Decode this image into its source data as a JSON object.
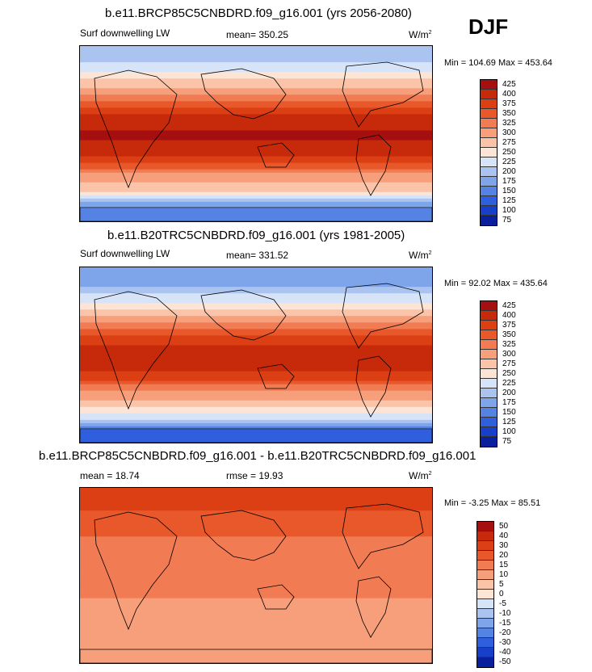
{
  "season": "DJF",
  "chart_data": [
    {
      "type": "heatmap",
      "title": "b.e11.BRCP85C5CNBDRD.f09_g16.001 (yrs 2056-2080)",
      "variable": "Surf downwelling LW",
      "mean_label": "mean= 350.25",
      "units": "W/m",
      "units_exp": "2",
      "minmax": "Min = 104.69 Max = 453.64",
      "min": 104.69,
      "max": 453.64,
      "mean": 350.25,
      "levels": [
        "425",
        "400",
        "375",
        "350",
        "325",
        "300",
        "275",
        "250",
        "225",
        "200",
        "175",
        "150",
        "125",
        "100",
        "75"
      ],
      "colors": [
        "#a50f0f",
        "#c72a0b",
        "#dc3f14",
        "#e9582a",
        "#f17b52",
        "#f79e7a",
        "#fbc4a8",
        "#fde4d5",
        "#d7e3f6",
        "#aac4ef",
        "#7ea4e9",
        "#5583e4",
        "#2f5fdc",
        "#173fc8",
        "#0a1f9c"
      ],
      "zonal_profile_wm2": [
        {
          "lat": 80,
          "v": 200
        },
        {
          "lat": 60,
          "v": 260
        },
        {
          "lat": 40,
          "v": 320
        },
        {
          "lat": 20,
          "v": 400
        },
        {
          "lat": 0,
          "v": 430
        },
        {
          "lat": -20,
          "v": 410
        },
        {
          "lat": -40,
          "v": 330
        },
        {
          "lat": -60,
          "v": 270
        },
        {
          "lat": -80,
          "v": 150
        }
      ]
    },
    {
      "type": "heatmap",
      "title": "b.e11.B20TRC5CNBDRD.f09_g16.001 (yrs 1981-2005)",
      "variable": "Surf downwelling LW",
      "mean_label": "mean= 331.52",
      "units": "W/m",
      "units_exp": "2",
      "minmax": "Min =  92.02 Max = 435.64",
      "min": 92.02,
      "max": 435.64,
      "mean": 331.52,
      "levels": [
        "425",
        "400",
        "375",
        "350",
        "325",
        "300",
        "275",
        "250",
        "225",
        "200",
        "175",
        "150",
        "125",
        "100",
        "75"
      ],
      "colors": [
        "#a50f0f",
        "#c72a0b",
        "#dc3f14",
        "#e9582a",
        "#f17b52",
        "#f79e7a",
        "#fbc4a8",
        "#fde4d5",
        "#d7e3f6",
        "#aac4ef",
        "#7ea4e9",
        "#5583e4",
        "#2f5fdc",
        "#173fc8",
        "#0a1f9c"
      ],
      "zonal_profile_wm2": [
        {
          "lat": 80,
          "v": 175
        },
        {
          "lat": 60,
          "v": 230
        },
        {
          "lat": 40,
          "v": 300
        },
        {
          "lat": 20,
          "v": 380
        },
        {
          "lat": 0,
          "v": 415
        },
        {
          "lat": -20,
          "v": 395
        },
        {
          "lat": -40,
          "v": 315
        },
        {
          "lat": -60,
          "v": 255
        },
        {
          "lat": -80,
          "v": 140
        }
      ]
    },
    {
      "type": "heatmap",
      "title": "b.e11.BRCP85C5CNBDRD.f09_g16.001 - b.e11.B20TRC5CNBDRD.f09_g16.001",
      "variable": "mean =  18.74",
      "mean_label": "rmse =  19.93",
      "units": "W/m",
      "units_exp": "2",
      "minmax": "Min =  -3.25 Max =  85.51",
      "min": -3.25,
      "max": 85.51,
      "mean": 18.74,
      "rmse": 19.93,
      "levels": [
        "50",
        "40",
        "30",
        "20",
        "15",
        "10",
        "5",
        "0",
        "-5",
        "-10",
        "-15",
        "-20",
        "-30",
        "-40",
        "-50"
      ],
      "colors": [
        "#a50f0f",
        "#c72a0b",
        "#dc3f14",
        "#e9582a",
        "#f17b52",
        "#f79e7a",
        "#fbc4a8",
        "#fde4d5",
        "#d7e3f6",
        "#aac4ef",
        "#7ea4e9",
        "#5583e4",
        "#2f5fdc",
        "#173fc8",
        "#0a1f9c"
      ],
      "zonal_profile_wm2": [
        {
          "lat": 80,
          "v": 35
        },
        {
          "lat": 60,
          "v": 28
        },
        {
          "lat": 40,
          "v": 20
        },
        {
          "lat": 20,
          "v": 18
        },
        {
          "lat": 0,
          "v": 16
        },
        {
          "lat": -20,
          "v": 16
        },
        {
          "lat": -40,
          "v": 10
        },
        {
          "lat": -60,
          "v": 14
        },
        {
          "lat": -80,
          "v": 10
        }
      ]
    }
  ]
}
